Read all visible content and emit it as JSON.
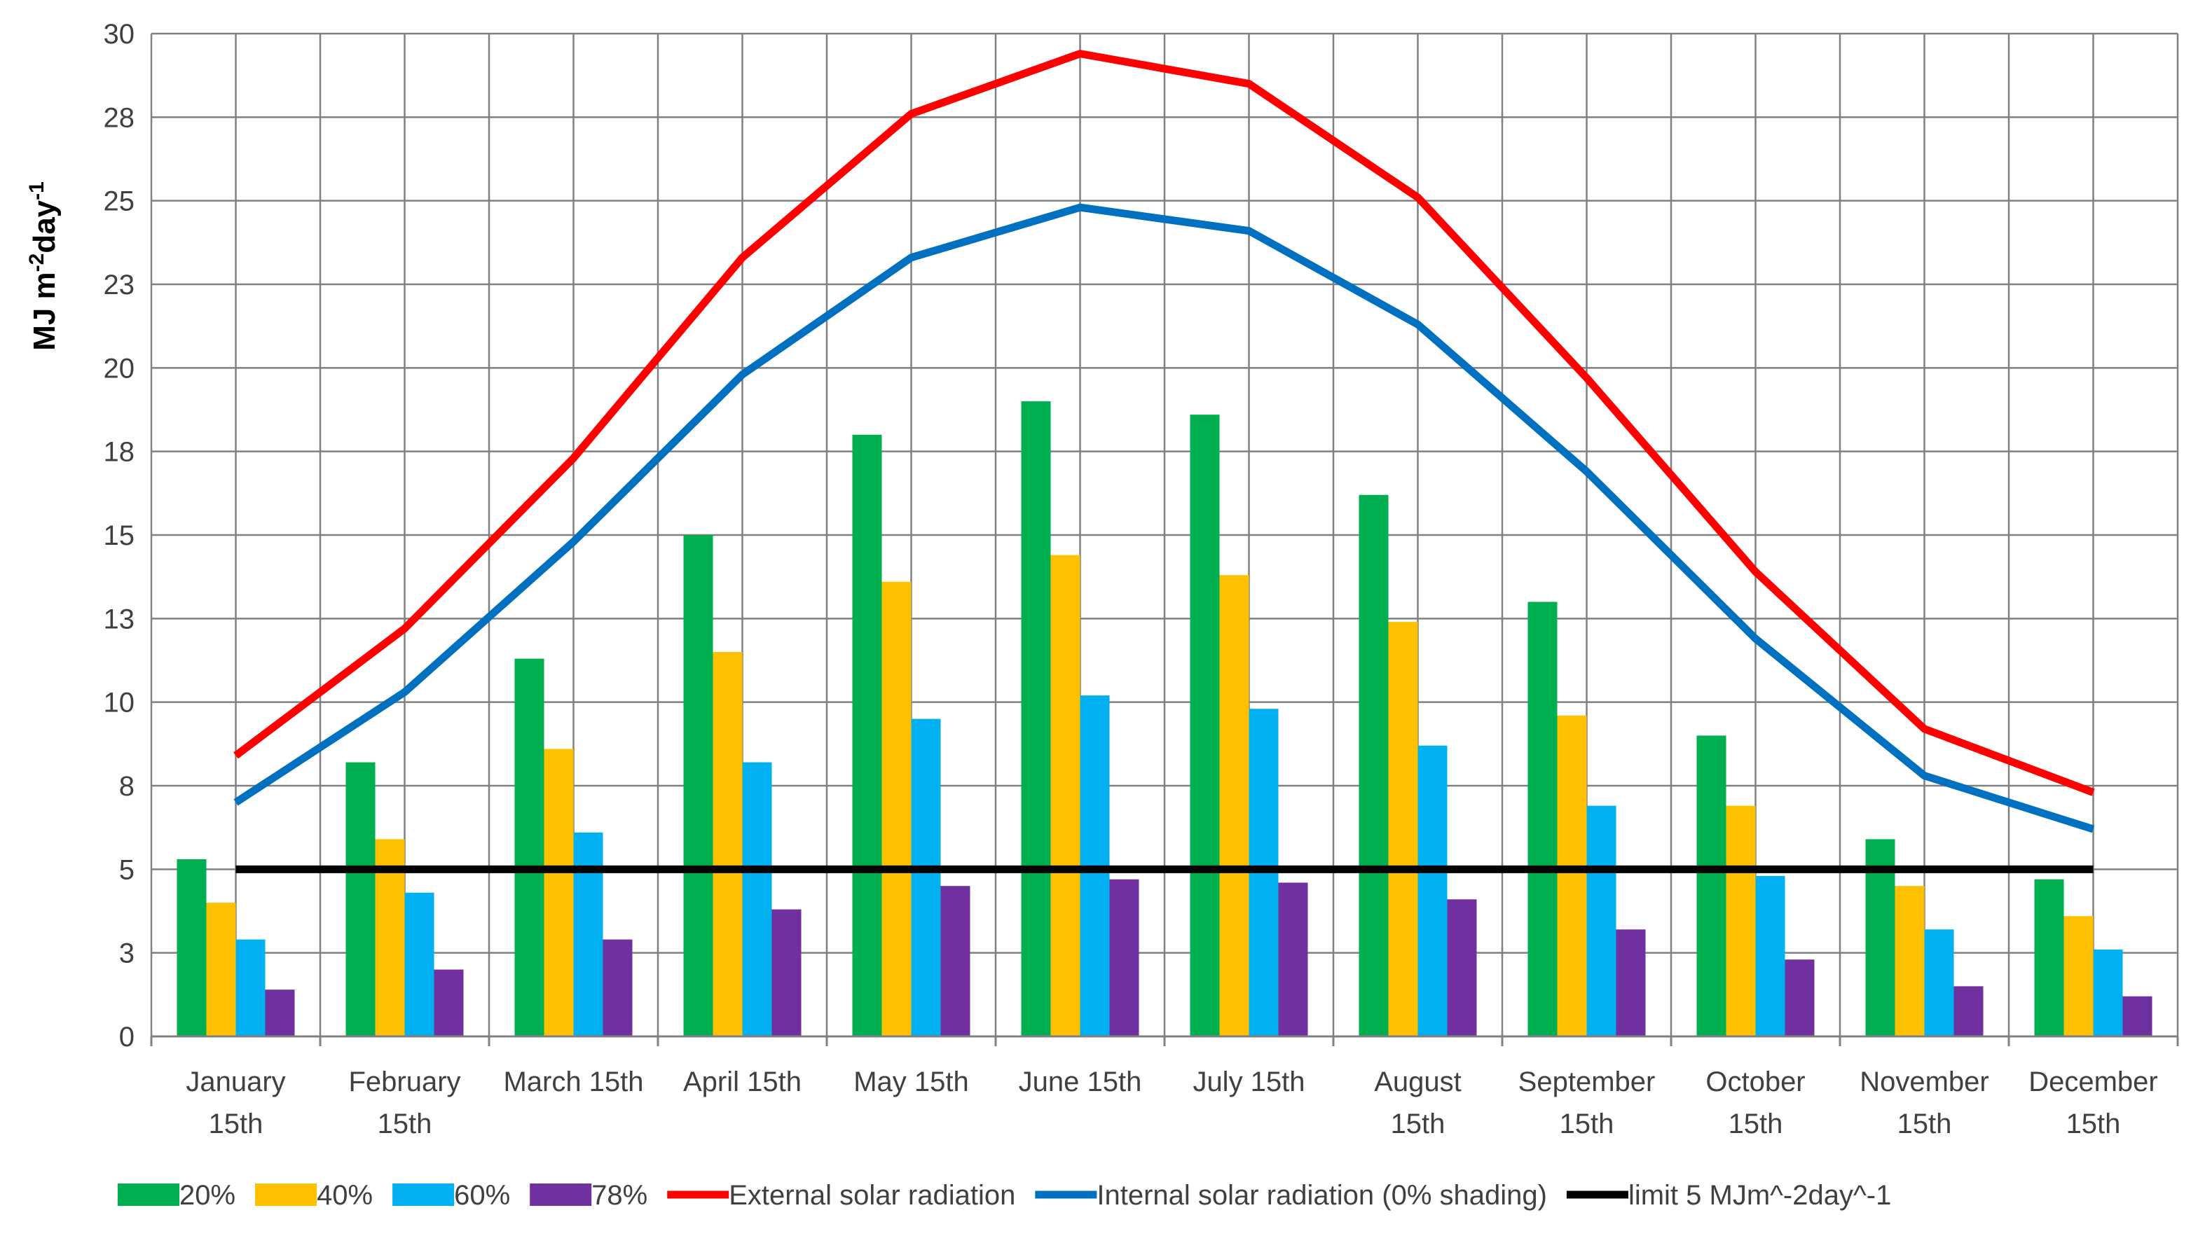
{
  "chart_data": {
    "type": "bar",
    "ylabel": "MJ m-2day-1",
    "ylabel_parts": {
      "base1": "MJ m",
      "sup1": "-2",
      "base2": "day",
      "sup2": "-1"
    },
    "ylim": [
      0,
      30
    ],
    "y_ticks": [
      "0",
      "3",
      "5",
      "8",
      "10",
      "13",
      "15",
      "18",
      "20",
      "23",
      "25",
      "28",
      "30"
    ],
    "grid": true,
    "legend_position": "bottom",
    "categories": [
      [
        "January",
        "15th"
      ],
      [
        "February",
        "15th"
      ],
      [
        "March 15th"
      ],
      [
        "April 15th"
      ],
      [
        "May 15th"
      ],
      [
        "June 15th"
      ],
      [
        "July 15th"
      ],
      [
        "August",
        "15th"
      ],
      [
        "September",
        "15th"
      ],
      [
        "October",
        "15th"
      ],
      [
        "November",
        "15th"
      ],
      [
        "December",
        "15th"
      ]
    ],
    "series": [
      {
        "name": "20%",
        "kind": "bar",
        "color": "#00b050",
        "values": [
          5.3,
          8.2,
          11.3,
          15.0,
          18.0,
          19.0,
          18.6,
          16.2,
          13.0,
          9.0,
          5.9,
          4.7
        ]
      },
      {
        "name": "40%",
        "kind": "bar",
        "color": "#ffc000",
        "values": [
          4.0,
          5.9,
          8.6,
          11.5,
          13.6,
          14.4,
          13.8,
          12.4,
          9.6,
          6.9,
          4.5,
          3.6
        ]
      },
      {
        "name": "60%",
        "kind": "bar",
        "color": "#00b0f0",
        "values": [
          2.9,
          4.3,
          6.1,
          8.2,
          9.5,
          10.2,
          9.8,
          8.7,
          6.9,
          4.8,
          3.2,
          2.6
        ]
      },
      {
        "name": "78%",
        "kind": "bar",
        "color": "#7030a0",
        "values": [
          1.4,
          2.0,
          2.9,
          3.8,
          4.5,
          4.7,
          4.6,
          4.1,
          3.2,
          2.3,
          1.5,
          1.2
        ]
      },
      {
        "name": "External solar radiation",
        "kind": "line",
        "color": "#ff0000",
        "values": [
          8.4,
          12.2,
          17.3,
          23.3,
          27.6,
          29.4,
          28.5,
          25.1,
          19.7,
          13.9,
          9.2,
          7.3
        ]
      },
      {
        "name": "Internal solar radiation (0% shading)",
        "kind": "line",
        "color": "#0070c0",
        "values": [
          7.0,
          10.3,
          14.8,
          19.8,
          23.3,
          24.8,
          24.1,
          21.3,
          16.9,
          11.9,
          7.8,
          6.2
        ]
      },
      {
        "name": "limit 5 MJm^-2day^-1",
        "kind": "line",
        "color": "#000000",
        "values": [
          5,
          5,
          5,
          5,
          5,
          5,
          5,
          5,
          5,
          5,
          5,
          5
        ]
      }
    ]
  }
}
